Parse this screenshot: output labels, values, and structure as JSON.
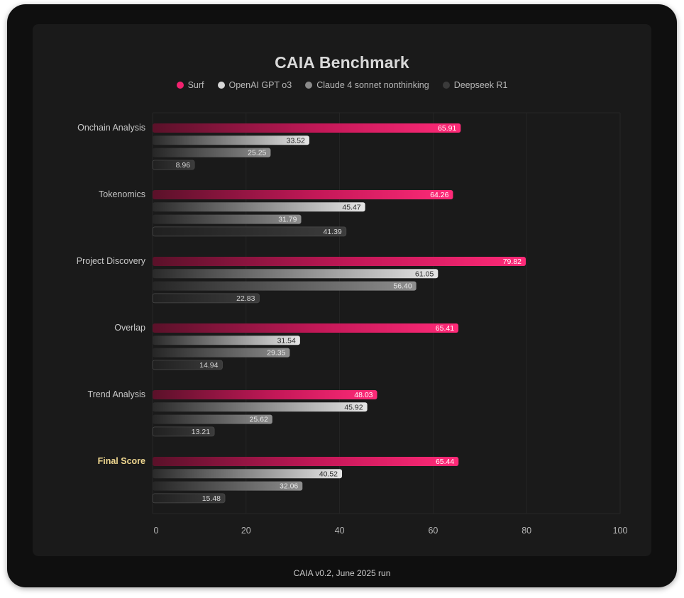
{
  "footer": "CAIA v0.2, June 2025 run",
  "colors": {
    "surf": "#f2226f",
    "gpt": "#d6d6d6",
    "claude": "#8a8a8a",
    "deepseek": "#3a3a3a",
    "highlight_label": "#f0d890"
  },
  "chart_data": {
    "type": "bar",
    "orientation": "horizontal",
    "title": "CAIA Benchmark",
    "legend_position": "top-center",
    "grid": true,
    "xlim": [
      0,
      100
    ],
    "x_ticks": [
      "0",
      "20",
      "40",
      "60",
      "80",
      "100"
    ],
    "categories": [
      "Onchain Analysis",
      "Tokenomics",
      "Project Discovery",
      "Overlap",
      "Trend Analysis",
      "Final Score"
    ],
    "highlighted_category": "Final Score",
    "series": [
      {
        "name": "Surf",
        "values": [
          65.91,
          64.26,
          79.82,
          65.41,
          48.03,
          65.44
        ],
        "labels": [
          "65.91",
          "64.26",
          "79.82",
          "65.41",
          "48.03",
          "65.44"
        ]
      },
      {
        "name": "OpenAI GPT o3",
        "values": [
          33.52,
          45.47,
          61.05,
          31.54,
          45.92,
          40.52
        ],
        "labels": [
          "33.52",
          "45.47",
          "61.05",
          "31.54",
          "45.92",
          "40.52"
        ]
      },
      {
        "name": "Claude 4 sonnet nonthinking",
        "values": [
          25.25,
          31.79,
          56.4,
          29.35,
          25.62,
          32.06
        ],
        "labels": [
          "25.25",
          "31.79",
          "56.40",
          "29.35",
          "25.62",
          "32.06"
        ]
      },
      {
        "name": "Deepseek R1",
        "values": [
          8.96,
          41.39,
          22.83,
          14.94,
          13.21,
          15.48
        ],
        "labels": [
          "8.96",
          "41.39",
          "22.83",
          "14.94",
          "13.21",
          "15.48"
        ]
      }
    ]
  }
}
